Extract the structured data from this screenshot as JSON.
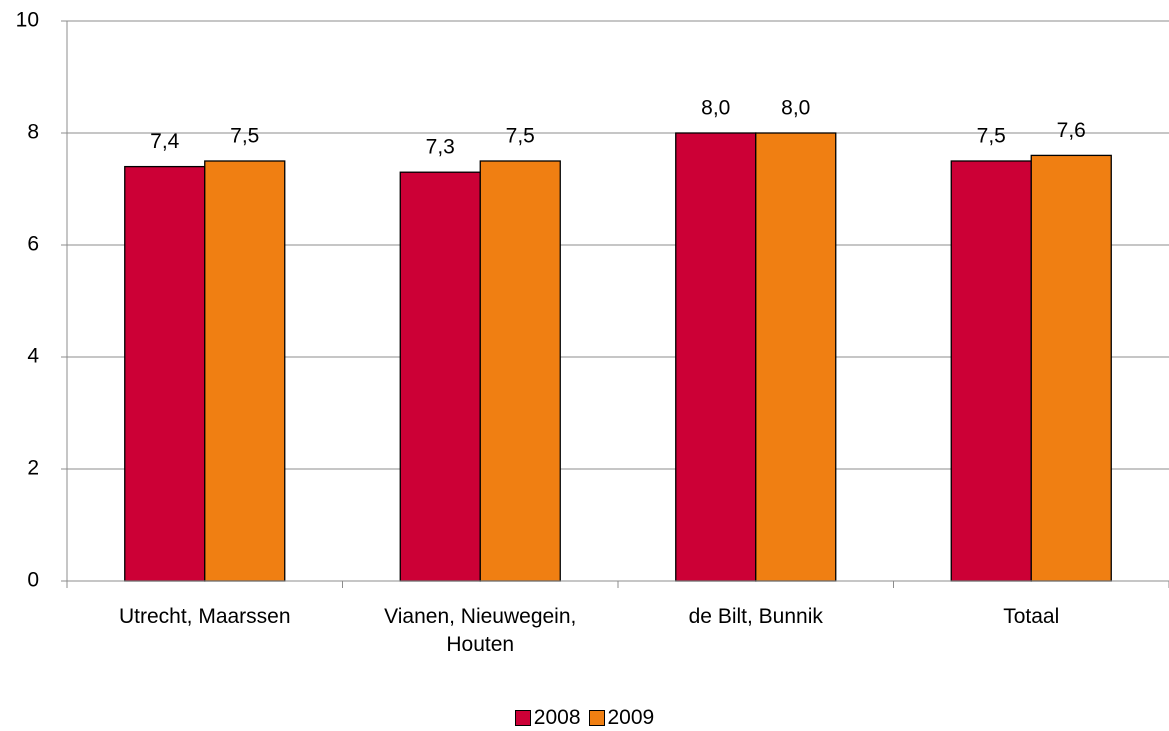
{
  "chart_data": {
    "type": "bar",
    "categories": [
      "Utrecht, Maarssen",
      "Vianen, Nieuwegein, Houten",
      "de Bilt, Bunnik",
      "Totaal"
    ],
    "series": [
      {
        "name": "2008",
        "color": "#cc0036",
        "values": [
          7.4,
          7.3,
          8.0,
          7.5
        ],
        "value_labels": [
          "7,4",
          "7,3",
          "8,0",
          "7,5"
        ]
      },
      {
        "name": "2009",
        "color": "#f07f12",
        "values": [
          7.5,
          7.5,
          8.0,
          7.6
        ],
        "value_labels": [
          "7,5",
          "7,5",
          "8,0",
          "7,6"
        ]
      }
    ],
    "ylim": [
      0,
      10
    ],
    "yticks": [
      0,
      2,
      4,
      6,
      8,
      10
    ],
    "grid": true,
    "legend": "bottom"
  }
}
